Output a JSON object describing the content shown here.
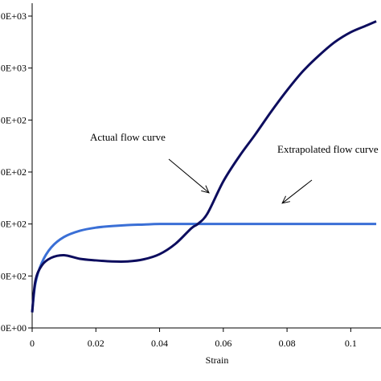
{
  "chart_data": {
    "type": "line",
    "xlabel": "Strain",
    "ylabel": "",
    "xlim": [
      0,
      0.11
    ],
    "ylim": [
      0,
      6
    ],
    "x_ticks": [
      0,
      0.02,
      0.04,
      0.06,
      0.08,
      0.1
    ],
    "x_tick_labels": [
      "0",
      "0.02",
      "0.04",
      "0.06",
      "0.08",
      "0.1"
    ],
    "y_ticks": [
      0,
      1,
      2,
      3,
      4,
      5,
      6
    ],
    "y_tick_labels": [
      "0E+00",
      "0E+02",
      "0E+02",
      "0E+02",
      "0E+02",
      "0E+03",
      "0E+03"
    ],
    "grid": false,
    "series": [
      {
        "color": "#0d0d5e",
        "x": [
          0,
          0.001,
          0.003,
          0.006,
          0.01,
          0.015,
          0.02,
          0.025,
          0.03,
          0.035,
          0.04,
          0.045,
          0.05,
          0.052,
          0.055,
          0.06,
          0.065,
          0.07,
          0.075,
          0.08,
          0.085,
          0.09,
          0.095,
          0.1,
          0.105,
          0.108
        ],
        "values": [
          0.3,
          0.9,
          1.2,
          1.35,
          1.4,
          1.33,
          1.3,
          1.28,
          1.28,
          1.32,
          1.42,
          1.62,
          1.92,
          2.0,
          2.2,
          2.82,
          3.3,
          3.72,
          4.16,
          4.57,
          4.94,
          5.24,
          5.5,
          5.69,
          5.82,
          5.9
        ]
      },
      {
        "color": "#3a6fd6",
        "x": [
          0,
          0.001,
          0.003,
          0.006,
          0.01,
          0.015,
          0.02,
          0.025,
          0.03,
          0.035,
          0.04,
          0.05,
          0.06,
          0.08,
          0.1,
          0.108
        ],
        "values": [
          0.3,
          0.85,
          1.25,
          1.55,
          1.75,
          1.87,
          1.93,
          1.96,
          1.98,
          1.99,
          2.0,
          2.0,
          2.0,
          2.0,
          2.0,
          2.0
        ]
      }
    ],
    "annotations": [
      {
        "text": "Actual flow curve",
        "points_to": {
          "x": 0.0555,
          "y": 2.6
        }
      },
      {
        "text": "Extrapolated flow curve",
        "points_to": {
          "x": 0.0785,
          "y": 2.4
        }
      }
    ]
  }
}
